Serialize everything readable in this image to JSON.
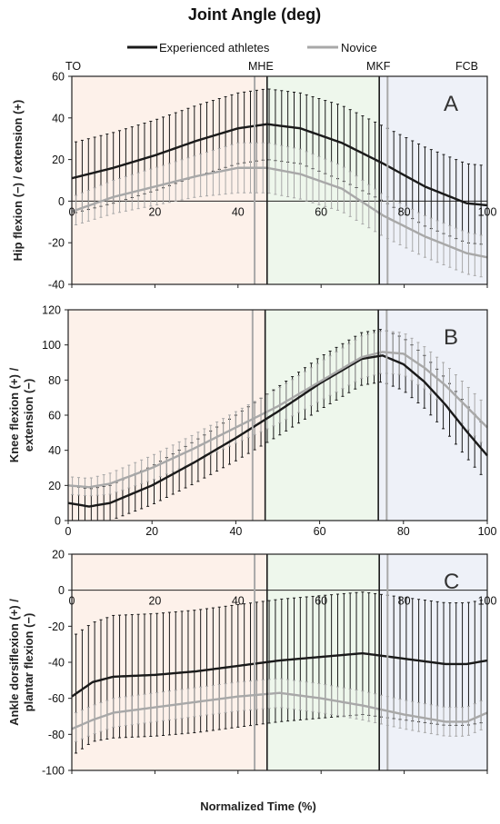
{
  "figure": {
    "title": "Joint Angle (deg)",
    "xlabel": "Normalized Time (%)",
    "legend": [
      "Experienced athletes",
      "Novice"
    ],
    "phase_labels": [
      "TO",
      "MHE",
      "MKF",
      "FCB"
    ],
    "phase_lines": {
      "experienced": [
        47,
        74
      ],
      "novice": [
        44,
        76
      ]
    },
    "colors": {
      "experienced": "#1a1a1a",
      "novice": "#a8a8a8",
      "phase1": "#fdf1ea",
      "phase2": "#eef7ec",
      "phase3": "#eef1f8"
    }
  },
  "chart_data": [
    {
      "type": "line",
      "panel": "A",
      "ylabel": "Hip flexion  (−)  / extension (+)",
      "ylim": [
        -40,
        60
      ],
      "yticks": [
        -40,
        -20,
        0,
        20,
        40,
        60
      ],
      "xlim": [
        0,
        100
      ],
      "xticks": [
        0,
        20,
        40,
        60,
        80,
        100
      ],
      "x": [
        0,
        10,
        20,
        30,
        40,
        47,
        55,
        65,
        75,
        85,
        95,
        100
      ],
      "series": [
        {
          "name": "Experienced athletes",
          "values": [
            11,
            16,
            22,
            29,
            35,
            37,
            35,
            28,
            18,
            7,
            -1,
            -2
          ],
          "sd": [
            17,
            17,
            17,
            17,
            17,
            17,
            17,
            18,
            18,
            19,
            19,
            19
          ]
        },
        {
          "name": "Novice",
          "values": [
            -5,
            2,
            7,
            12,
            16,
            16,
            13,
            6,
            -7,
            -17,
            -25,
            -27
          ],
          "sd": [
            7,
            8,
            9,
            10,
            12,
            12,
            12,
            11,
            10,
            10,
            10,
            10
          ]
        }
      ]
    },
    {
      "type": "line",
      "panel": "B",
      "ylabel": "Knee flexion (+) / extension (−)",
      "ylim": [
        0,
        120
      ],
      "yticks": [
        0,
        20,
        40,
        60,
        80,
        100,
        120
      ],
      "xlim": [
        0,
        100
      ],
      "xticks": [
        0,
        20,
        40,
        60,
        80,
        100
      ],
      "x": [
        0,
        5,
        10,
        20,
        30,
        40,
        50,
        60,
        70,
        75,
        80,
        85,
        90,
        95,
        100
      ],
      "series": [
        {
          "name": "Experienced athletes",
          "values": [
            10,
            8,
            10,
            20,
            33,
            47,
            62,
            78,
            92,
            94,
            89,
            79,
            66,
            51,
            37
          ],
          "sd": [
            10,
            10,
            10,
            11,
            12,
            13,
            14,
            15,
            15,
            15,
            15,
            15,
            15,
            15,
            15
          ]
        },
        {
          "name": "Novice",
          "values": [
            20,
            19,
            21,
            30,
            41,
            53,
            65,
            79,
            93,
            96,
            95,
            87,
            77,
            65,
            53
          ],
          "sd": [
            5,
            5,
            6,
            7,
            8,
            9,
            10,
            11,
            12,
            12,
            12,
            12,
            12,
            12,
            12
          ]
        }
      ]
    },
    {
      "type": "line",
      "panel": "C",
      "ylabel": "Ankle dorsiflexion (+) / plantar flexion  (−)",
      "ylim": [
        -100,
        20
      ],
      "yticks": [
        -100,
        -80,
        -60,
        -40,
        -20,
        0,
        20
      ],
      "xlim": [
        0,
        100
      ],
      "xticks": [
        0,
        20,
        40,
        60,
        80,
        100
      ],
      "x": [
        0,
        5,
        10,
        20,
        30,
        40,
        50,
        60,
        70,
        80,
        90,
        95,
        100
      ],
      "series": [
        {
          "name": "Experienced athletes",
          "values": [
            -59,
            -51,
            -48,
            -47,
            -45,
            -42,
            -39,
            -37,
            -35,
            -38,
            -41,
            -41,
            -39
          ],
          "sd": [
            33,
            33,
            34,
            34,
            34,
            34,
            34,
            34,
            34,
            34,
            34,
            34,
            34
          ]
        },
        {
          "name": "Novice",
          "values": [
            -77,
            -72,
            -68,
            -65,
            -62,
            -59,
            -57,
            -60,
            -64,
            -69,
            -73,
            -73,
            -68
          ],
          "sd": [
            8,
            8,
            8,
            8,
            8,
            8,
            8,
            8,
            8,
            8,
            8,
            8,
            8
          ]
        }
      ]
    }
  ]
}
